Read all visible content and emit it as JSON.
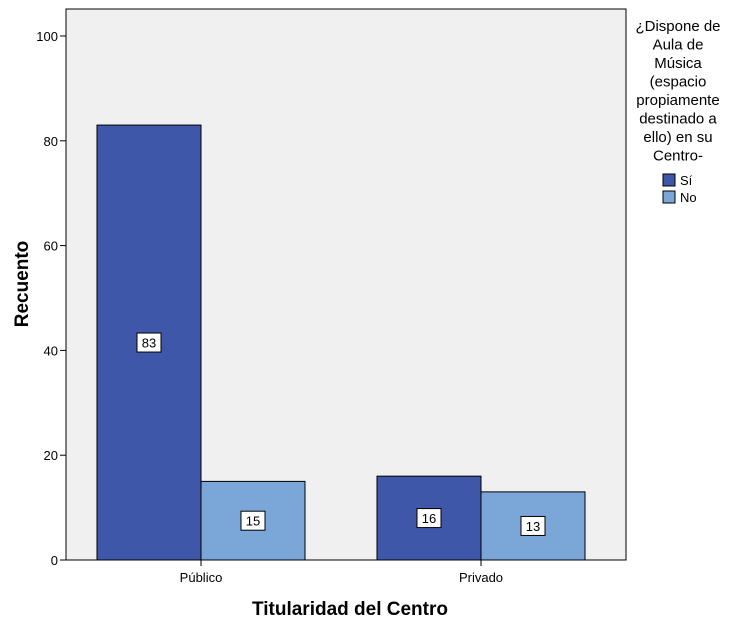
{
  "chart_data": {
    "type": "bar",
    "title": "",
    "xlabel": "Titularidad del Centro",
    "ylabel": "Recuento",
    "categories": [
      "Público",
      "Privado"
    ],
    "series": [
      {
        "name": "Sí",
        "values": [
          83,
          16
        ],
        "color": "#3f57a9"
      },
      {
        "name": "No",
        "values": [
          15,
          13
        ],
        "color": "#7aa7d8"
      }
    ],
    "ylim": [
      0,
      100
    ],
    "yticks": [
      0,
      20,
      40,
      60,
      80,
      100
    ],
    "grid": false,
    "legend": {
      "title_lines": [
        "¿Dispone de",
        "Aula de",
        "Música",
        "(espacio",
        "propiamente",
        "destinado a",
        "ello) en su",
        "Centro-"
      ],
      "position": "right"
    },
    "plot_background": "#f0f0f0"
  }
}
